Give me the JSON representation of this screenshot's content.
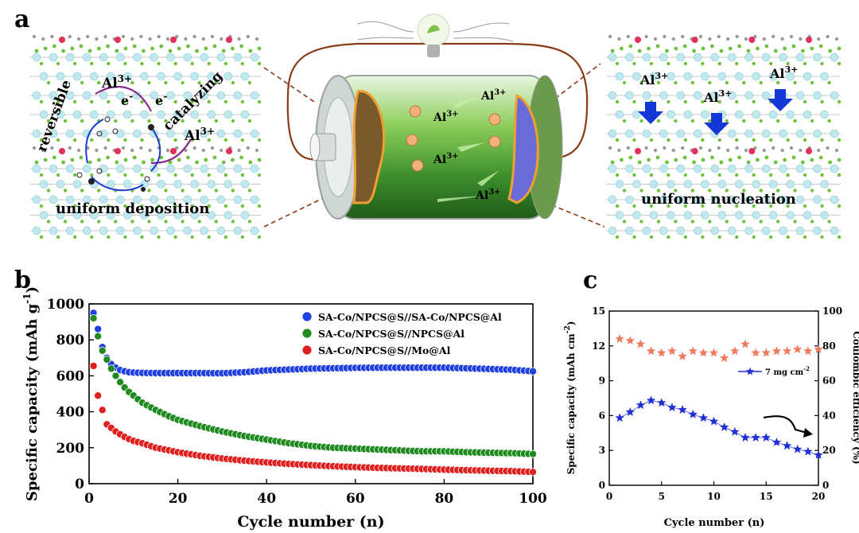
{
  "panel_labels": {
    "a": "a",
    "b": "b",
    "c": "c"
  },
  "schematic": {
    "left": {
      "ion_top": "Al",
      "ion_right": "Al",
      "ion_sup": "3+",
      "electron_1": "e",
      "electron_2": "e",
      "electron_sup": "-",
      "reversible": "reversible",
      "catalyzing": "catalyzing",
      "uniform_deposition": "uniform deposition"
    },
    "battery": {
      "ions": [
        "Al",
        "Al",
        "Al",
        "Al"
      ],
      "ion_sup": "3+"
    },
    "right": {
      "ions": [
        "Al",
        "Al",
        "Al"
      ],
      "ion_sup": "3+",
      "uniform_nucleation": "uniform nucleation"
    },
    "colors": {
      "wire": "#8b3a16",
      "battery_green": "#3f8f2a",
      "arrow_blue": "#1438d6",
      "carbon_gray": "#9a9a9a",
      "cyan_atom": "#bfe9ee",
      "green_atom": "#6cc23a",
      "red_atom": "#e3305a"
    }
  },
  "chart_data": [
    {
      "type": "scatter",
      "panel": "b",
      "xlabel": "Cycle number (n)",
      "ylabel": "Specific capacity (mAh g",
      "ylabel_sup": "-1",
      "ylabel_end": ")",
      "xlim": [
        0,
        100
      ],
      "ylim": [
        0,
        1000
      ],
      "xticks": [
        "0",
        "20",
        "40",
        "60",
        "80",
        "100"
      ],
      "yticks": [
        "0",
        "200",
        "400",
        "600",
        "800",
        "1000"
      ],
      "legend_position": "top-right",
      "series": [
        {
          "name": "SA-Co/NPCS@S//SA-Co/NPCS@Al",
          "color": "#1f3fe0",
          "x": [
            1,
            2,
            3,
            4,
            5,
            6,
            7,
            8,
            9,
            10,
            12,
            15,
            20,
            25,
            30,
            35,
            40,
            45,
            50,
            55,
            60,
            65,
            70,
            75,
            80,
            85,
            90,
            95,
            100
          ],
          "y": [
            950,
            860,
            760,
            700,
            665,
            645,
            632,
            625,
            620,
            618,
            616,
            615,
            615,
            615,
            614,
            620,
            630,
            635,
            640,
            642,
            644,
            645,
            645,
            645,
            645,
            642,
            638,
            634,
            625
          ]
        },
        {
          "name": "SA-Co/NPCS@S//NPCS@Al",
          "color": "#1f8a1f",
          "x": [
            1,
            2,
            3,
            4,
            5,
            6,
            7,
            8,
            9,
            10,
            12,
            15,
            18,
            20,
            25,
            30,
            35,
            40,
            45,
            50,
            55,
            60,
            65,
            70,
            75,
            80,
            85,
            90,
            95,
            100
          ],
          "y": [
            920,
            820,
            740,
            690,
            640,
            600,
            565,
            535,
            510,
            490,
            450,
            410,
            375,
            355,
            320,
            290,
            265,
            245,
            225,
            210,
            200,
            195,
            190,
            185,
            180,
            180,
            175,
            172,
            170,
            165
          ]
        },
        {
          "name": "SA-Co/NPCS@S//Mo@Al",
          "color": "#e01f1f",
          "x": [
            1,
            2,
            3,
            4,
            5,
            6,
            7,
            8,
            9,
            10,
            12,
            15,
            20,
            25,
            30,
            35,
            40,
            45,
            50,
            55,
            60,
            65,
            70,
            75,
            80,
            85,
            90,
            95,
            100
          ],
          "y": [
            655,
            490,
            410,
            330,
            310,
            290,
            275,
            260,
            248,
            238,
            225,
            200,
            175,
            155,
            140,
            128,
            118,
            110,
            103,
            97,
            92,
            88,
            85,
            82,
            78,
            75,
            72,
            70,
            65
          ]
        }
      ]
    },
    {
      "type": "scatter",
      "panel": "c",
      "xlabel": "Cycle number (n)",
      "ylabel": "Specific capacity (mAh cm",
      "ylabel_sup": "-2",
      "ylabel_end": ")",
      "y2label": "Coulombic efficiency (%)",
      "xlim": [
        0,
        20
      ],
      "ylim": [
        0,
        15
      ],
      "y2lim": [
        0,
        100
      ],
      "xticks": [
        "0",
        "5",
        "10",
        "15",
        "20"
      ],
      "yticks": [
        "0",
        "3",
        "6",
        "9",
        "12",
        "15"
      ],
      "y2ticks": [
        "0",
        "20",
        "40",
        "60",
        "80",
        "100"
      ],
      "legend_position": "right",
      "series": [
        {
          "name": "7 mg cm",
          "name_sup": "-2",
          "color": "#1f2fd6",
          "axis": "left",
          "x": [
            1,
            2,
            3,
            4,
            5,
            6,
            7,
            8,
            9,
            10,
            11,
            12,
            13,
            14,
            15,
            16,
            17,
            18,
            19,
            20
          ],
          "y": [
            5.8,
            6.3,
            6.9,
            7.3,
            7.1,
            6.7,
            6.5,
            6.1,
            5.8,
            5.5,
            5.0,
            4.6,
            4.1,
            4.1,
            4.1,
            3.7,
            3.4,
            3.1,
            2.9,
            2.6
          ]
        },
        {
          "name": "",
          "color": "#f07a5f",
          "axis": "right",
          "x": [
            1,
            2,
            3,
            4,
            5,
            6,
            7,
            8,
            9,
            10,
            11,
            12,
            13,
            14,
            15,
            16,
            17,
            18,
            19,
            20
          ],
          "y": [
            84,
            83,
            81,
            77,
            76,
            77,
            74,
            77,
            76,
            76,
            73,
            77,
            81,
            76,
            76,
            77,
            77,
            78,
            77,
            78
          ]
        }
      ]
    }
  ]
}
